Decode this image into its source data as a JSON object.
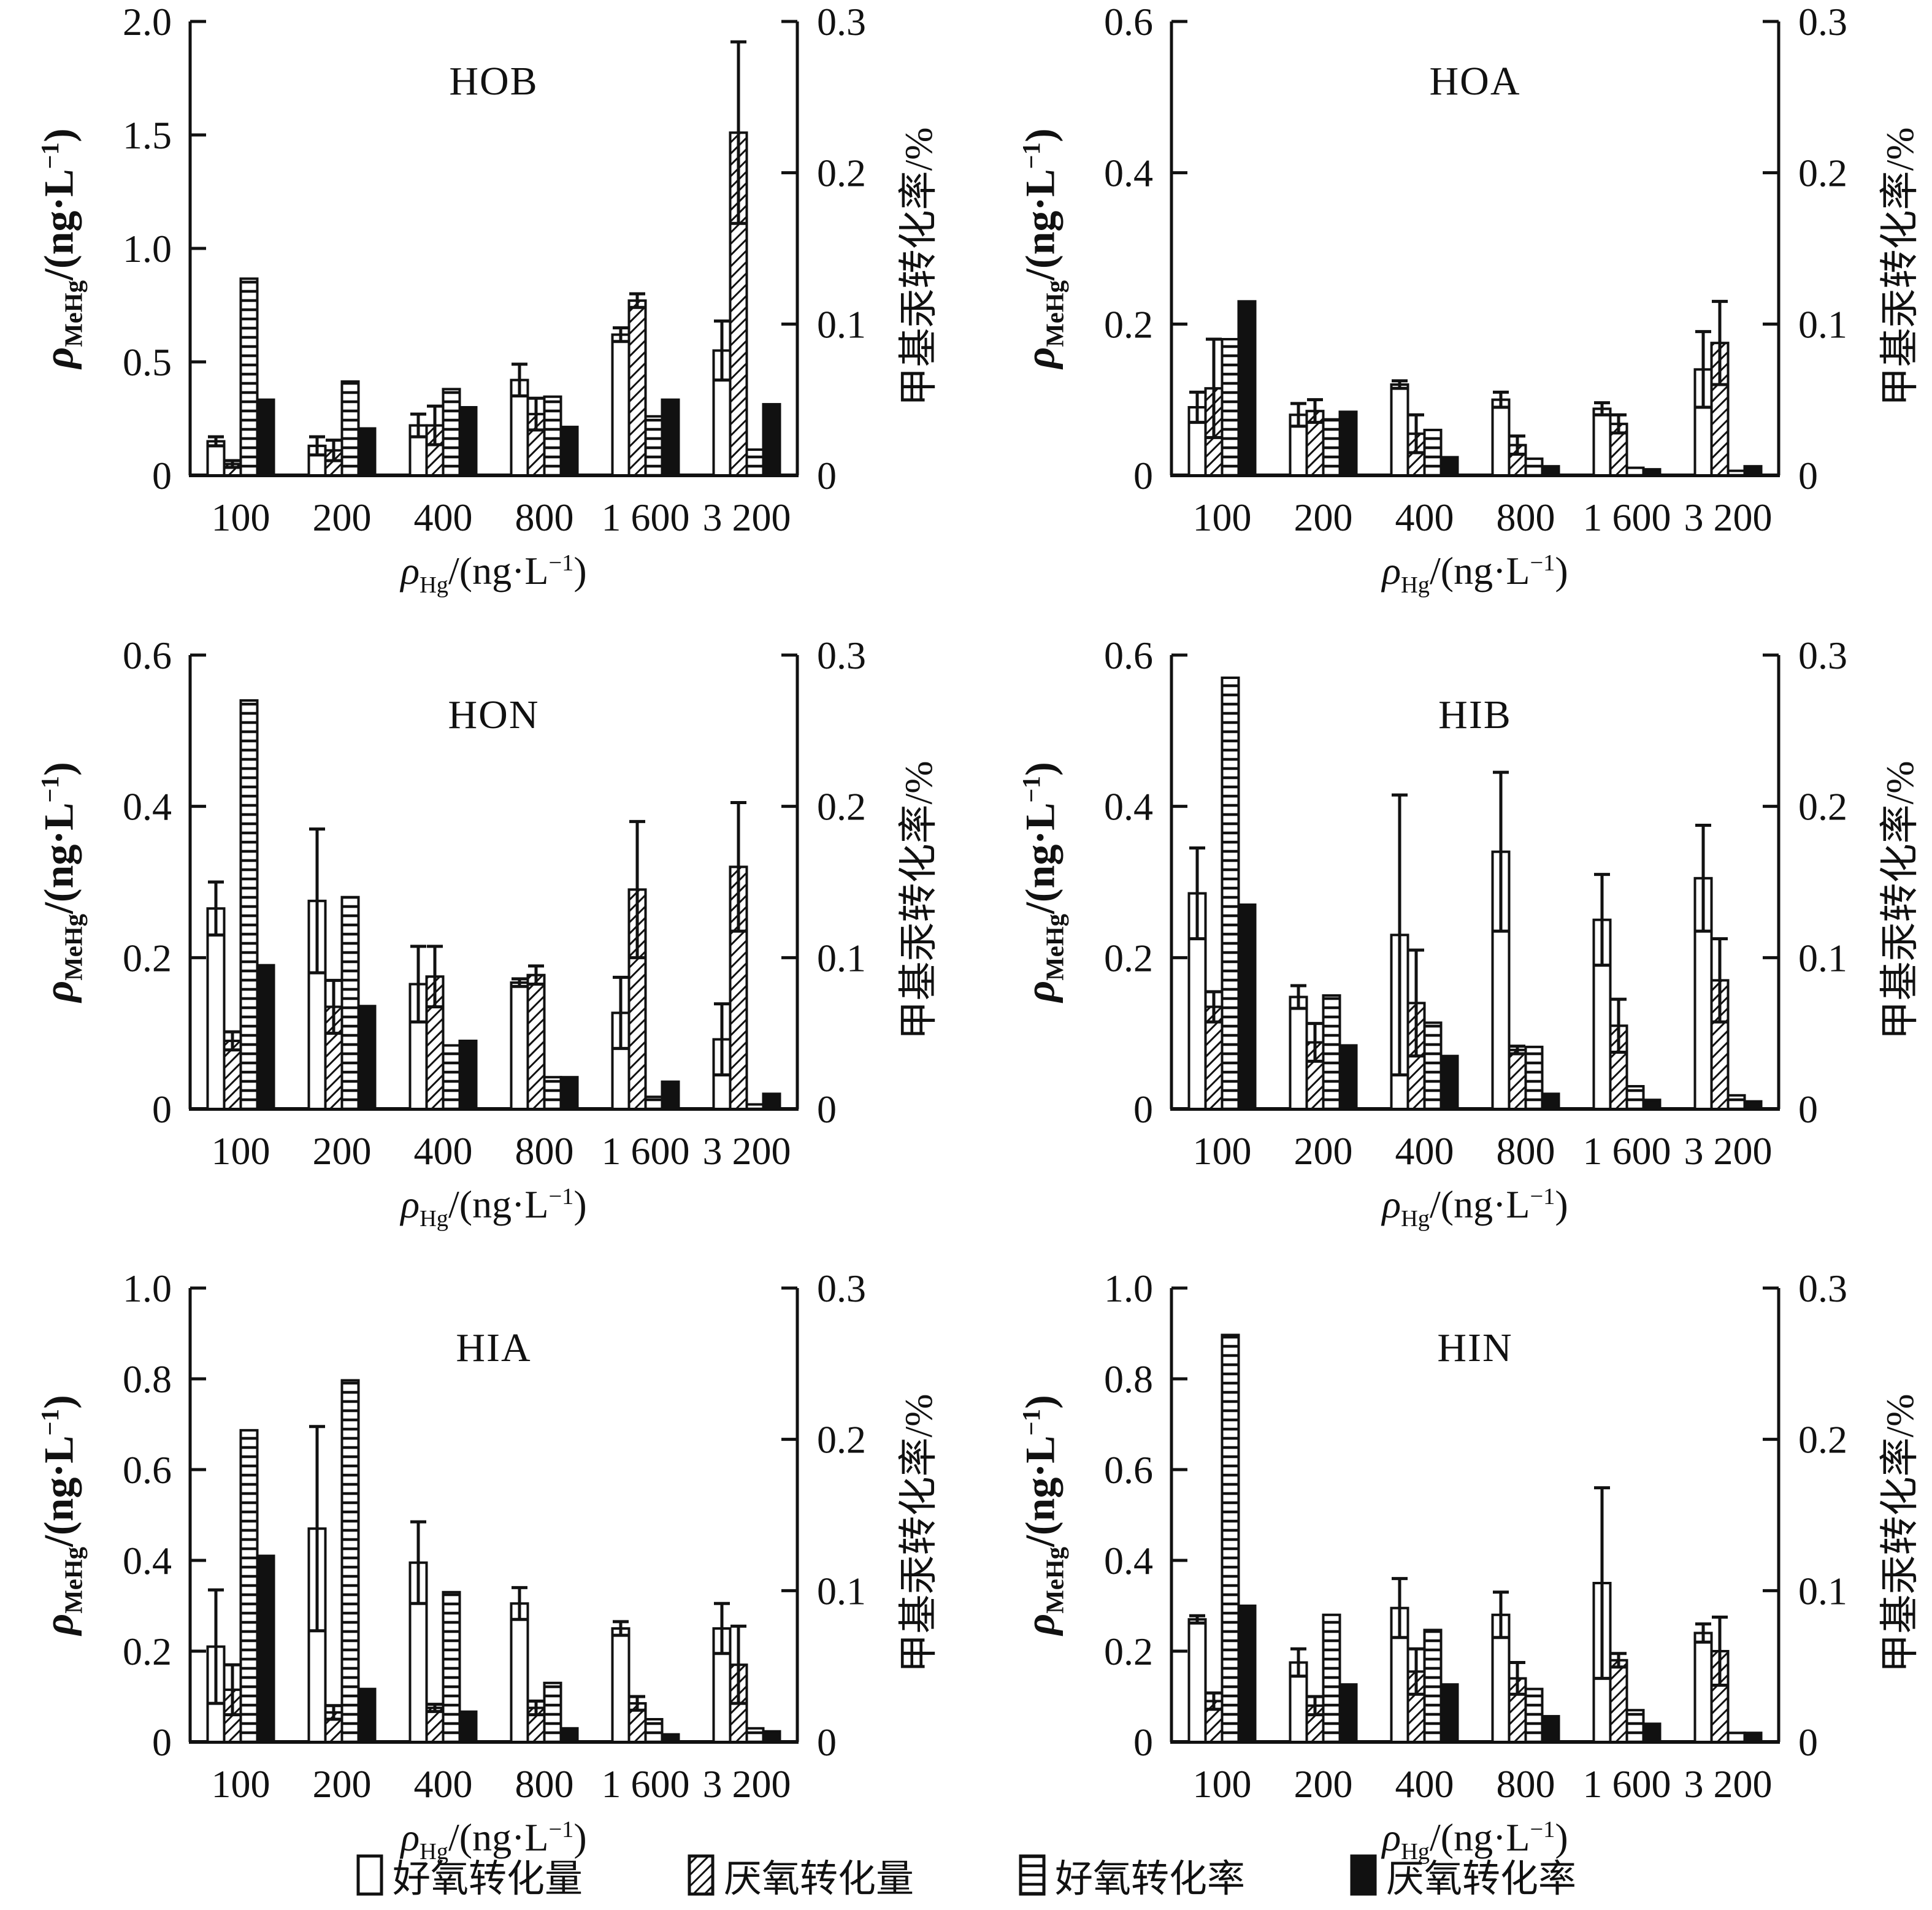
{
  "page": {
    "background": "#ffffff",
    "ink": "#111111"
  },
  "axis_labels": {
    "y_left": {
      "rho": "ρ",
      "sub": "MeHg",
      "mid": "/(ng·L",
      "sup": "−1",
      "end": ")"
    },
    "x": {
      "rho": "ρ",
      "sub": "Hg",
      "mid": "/(ng·L",
      "sup": "−1",
      "end": ")"
    },
    "y_right": "甲基汞转化率/%"
  },
  "legend": [
    {
      "label": "好氧转化量",
      "pattern": "open"
    },
    {
      "label": "厌氧转化量",
      "pattern": "diagonal"
    },
    {
      "label": "好氧转化率",
      "pattern": "horizontal"
    },
    {
      "label": "厌氧转化率",
      "pattern": "solid"
    }
  ],
  "chart_data": [
    {
      "type": "bar",
      "title": "HOB",
      "categories": [
        "100",
        "200",
        "400",
        "800",
        "1 600",
        "3 200"
      ],
      "left_axis": {
        "max": 2.0,
        "ticks": [
          0,
          0.5,
          1.0,
          1.5,
          2.0
        ],
        "labels": [
          "0",
          "0.5",
          "1.0",
          "1.5",
          "2.0"
        ]
      },
      "right_axis": {
        "max": 0.3,
        "ticks": [
          0,
          0.1,
          0.2,
          0.3
        ],
        "labels": [
          "0",
          "0.1",
          "0.2",
          "0.3"
        ]
      },
      "grid": false,
      "legend_position": "bottom",
      "series": [
        {
          "key": "aerobic-amount",
          "name": "好氧转化量",
          "pattern": "open",
          "axis": "left",
          "values": [
            0.15,
            0.13,
            0.22,
            0.42,
            0.62,
            0.55
          ],
          "errors": [
            0.02,
            0.04,
            0.05,
            0.07,
            0.03,
            0.13
          ]
        },
        {
          "key": "anaerobic-amount",
          "name": "厌氧转化量",
          "pattern": "diagonal",
          "axis": "left",
          "values": [
            0.05,
            0.11,
            0.22,
            0.27,
            0.77,
            1.51
          ],
          "errors": [
            0.015,
            0.045,
            0.085,
            0.07,
            0.03,
            0.4
          ]
        },
        {
          "key": "aerobic-rate",
          "name": "好氧转化率",
          "pattern": "horizontal",
          "axis": "right",
          "values": [
            0.13,
            0.062,
            0.057,
            0.052,
            0.039,
            0.017
          ]
        },
        {
          "key": "anaerobic-rate",
          "name": "厌氧转化率",
          "pattern": "solid",
          "axis": "right",
          "values": [
            0.05,
            0.031,
            0.045,
            0.032,
            0.05,
            0.047
          ]
        }
      ]
    },
    {
      "type": "bar",
      "title": "HOA",
      "categories": [
        "100",
        "200",
        "400",
        "800",
        "1 600",
        "3 200"
      ],
      "left_axis": {
        "max": 0.6,
        "ticks": [
          0,
          0.2,
          0.4,
          0.6
        ],
        "labels": [
          "0",
          "0.2",
          "0.4",
          "0.6"
        ]
      },
      "right_axis": {
        "max": 0.3,
        "ticks": [
          0,
          0.1,
          0.2,
          0.3
        ],
        "labels": [
          "0",
          "0.1",
          "0.2",
          "0.3"
        ]
      },
      "grid": false,
      "legend_position": "bottom",
      "series": [
        {
          "key": "aerobic-amount",
          "name": "好氧转化量",
          "pattern": "open",
          "axis": "left",
          "values": [
            0.09,
            0.08,
            0.12,
            0.1,
            0.088,
            0.14
          ],
          "errors": [
            0.02,
            0.015,
            0.005,
            0.01,
            0.008,
            0.05
          ]
        },
        {
          "key": "anaerobic-amount",
          "name": "厌氧转化量",
          "pattern": "diagonal",
          "axis": "left",
          "values": [
            0.115,
            0.085,
            0.055,
            0.04,
            0.068,
            0.175
          ],
          "errors": [
            0.065,
            0.015,
            0.025,
            0.012,
            0.012,
            0.055
          ]
        },
        {
          "key": "aerobic-rate",
          "name": "好氧转化率",
          "pattern": "horizontal",
          "axis": "right",
          "values": [
            0.09,
            0.037,
            0.03,
            0.011,
            0.005,
            0.003
          ]
        },
        {
          "key": "anaerobic-rate",
          "name": "厌氧转化率",
          "pattern": "solid",
          "axis": "right",
          "values": [
            0.115,
            0.042,
            0.012,
            0.006,
            0.004,
            0.006
          ]
        }
      ]
    },
    {
      "type": "bar",
      "title": "HON",
      "categories": [
        "100",
        "200",
        "400",
        "800",
        "1 600",
        "3 200"
      ],
      "left_axis": {
        "max": 0.6,
        "ticks": [
          0,
          0.2,
          0.4,
          0.6
        ],
        "labels": [
          "0",
          "0.2",
          "0.4",
          "0.6"
        ]
      },
      "right_axis": {
        "max": 0.3,
        "ticks": [
          0,
          0.1,
          0.2,
          0.3
        ],
        "labels": [
          "0",
          "0.1",
          "0.2",
          "0.3"
        ]
      },
      "grid": false,
      "legend_position": "bottom",
      "series": [
        {
          "key": "aerobic-amount",
          "name": "好氧转化量",
          "pattern": "open",
          "axis": "left",
          "values": [
            0.265,
            0.275,
            0.165,
            0.167,
            0.127,
            0.092
          ],
          "errors": [
            0.035,
            0.095,
            0.05,
            0.005,
            0.047,
            0.047
          ]
        },
        {
          "key": "anaerobic-amount",
          "name": "厌氧转化量",
          "pattern": "diagonal",
          "axis": "left",
          "values": [
            0.09,
            0.135,
            0.175,
            0.177,
            0.29,
            0.32
          ],
          "errors": [
            0.012,
            0.035,
            0.04,
            0.012,
            0.09,
            0.085
          ]
        },
        {
          "key": "aerobic-rate",
          "name": "好氧转化率",
          "pattern": "horizontal",
          "axis": "right",
          "values": [
            0.27,
            0.14,
            0.042,
            0.021,
            0.008,
            0.003
          ]
        },
        {
          "key": "anaerobic-rate",
          "name": "厌氧转化率",
          "pattern": "solid",
          "axis": "right",
          "values": [
            0.095,
            0.068,
            0.045,
            0.021,
            0.018,
            0.01
          ]
        }
      ]
    },
    {
      "type": "bar",
      "title": "HIB",
      "categories": [
        "100",
        "200",
        "400",
        "800",
        "1 600",
        "3 200"
      ],
      "left_axis": {
        "max": 0.6,
        "ticks": [
          0,
          0.2,
          0.4,
          0.6
        ],
        "labels": [
          "0",
          "0.2",
          "0.4",
          "0.6"
        ]
      },
      "right_axis": {
        "max": 0.3,
        "ticks": [
          0,
          0.1,
          0.2,
          0.3
        ],
        "labels": [
          "0",
          "0.1",
          "0.2",
          "0.3"
        ]
      },
      "grid": false,
      "legend_position": "bottom",
      "series": [
        {
          "key": "aerobic-amount",
          "name": "好氧转化量",
          "pattern": "open",
          "axis": "left",
          "values": [
            0.285,
            0.148,
            0.23,
            0.34,
            0.25,
            0.305
          ],
          "errors": [
            0.06,
            0.015,
            0.185,
            0.105,
            0.06,
            0.07
          ]
        },
        {
          "key": "anaerobic-amount",
          "name": "厌氧转化量",
          "pattern": "diagonal",
          "axis": "left",
          "values": [
            0.135,
            0.088,
            0.14,
            0.078,
            0.11,
            0.17
          ],
          "errors": [
            0.02,
            0.025,
            0.07,
            0.005,
            0.035,
            0.055
          ]
        },
        {
          "key": "aerobic-rate",
          "name": "好氧转化率",
          "pattern": "horizontal",
          "axis": "right",
          "values": [
            0.285,
            0.075,
            0.057,
            0.041,
            0.015,
            0.009
          ]
        },
        {
          "key": "anaerobic-rate",
          "name": "厌氧转化率",
          "pattern": "solid",
          "axis": "right",
          "values": [
            0.135,
            0.042,
            0.035,
            0.01,
            0.006,
            0.005
          ]
        }
      ]
    },
    {
      "type": "bar",
      "title": "HIA",
      "categories": [
        "100",
        "200",
        "400",
        "800",
        "1 600",
        "3 200"
      ],
      "left_axis": {
        "max": 1.0,
        "ticks": [
          0,
          0.2,
          0.4,
          0.6,
          0.8,
          1.0
        ],
        "labels": [
          "0",
          "0.2",
          "0.4",
          "0.6",
          "0.8",
          "1.0"
        ]
      },
      "right_axis": {
        "max": 0.3,
        "ticks": [
          0,
          0.1,
          0.2,
          0.3
        ],
        "labels": [
          "0",
          "0.1",
          "0.2",
          "0.3"
        ]
      },
      "grid": false,
      "legend_position": "bottom",
      "series": [
        {
          "key": "aerobic-amount",
          "name": "好氧转化量",
          "pattern": "open",
          "axis": "left",
          "values": [
            0.21,
            0.47,
            0.395,
            0.305,
            0.25,
            0.25
          ],
          "errors": [
            0.125,
            0.225,
            0.09,
            0.035,
            0.015,
            0.055
          ]
        },
        {
          "key": "anaerobic-amount",
          "name": "厌氧转化量",
          "pattern": "diagonal",
          "axis": "left",
          "values": [
            0.115,
            0.065,
            0.075,
            0.075,
            0.085,
            0.17
          ],
          "errors": [
            0.055,
            0.015,
            0.008,
            0.015,
            0.015,
            0.085
          ]
        },
        {
          "key": "aerobic-rate",
          "name": "好氧转化率",
          "pattern": "horizontal",
          "axis": "right",
          "values": [
            0.206,
            0.239,
            0.099,
            0.039,
            0.015,
            0.009
          ]
        },
        {
          "key": "anaerobic-rate",
          "name": "厌氧转化率",
          "pattern": "solid",
          "axis": "right",
          "values": [
            0.123,
            0.035,
            0.02,
            0.009,
            0.005,
            0.007
          ]
        }
      ]
    },
    {
      "type": "bar",
      "title": "HIN",
      "categories": [
        "100",
        "200",
        "400",
        "800",
        "1 600",
        "3 200"
      ],
      "left_axis": {
        "max": 1.0,
        "ticks": [
          0,
          0.2,
          0.4,
          0.6,
          0.8,
          1.0
        ],
        "labels": [
          "0",
          "0.2",
          "0.4",
          "0.6",
          "0.8",
          "1.0"
        ]
      },
      "right_axis": {
        "max": 0.3,
        "ticks": [
          0,
          0.1,
          0.2,
          0.3
        ],
        "labels": [
          "0",
          "0.1",
          "0.2",
          "0.3"
        ]
      },
      "grid": false,
      "legend_position": "bottom",
      "series": [
        {
          "key": "aerobic-amount",
          "name": "好氧转化量",
          "pattern": "open",
          "axis": "left",
          "values": [
            0.27,
            0.175,
            0.295,
            0.28,
            0.35,
            0.24
          ],
          "errors": [
            0.008,
            0.03,
            0.065,
            0.05,
            0.21,
            0.02
          ]
        },
        {
          "key": "anaerobic-amount",
          "name": "厌氧转化量",
          "pattern": "diagonal",
          "axis": "left",
          "values": [
            0.09,
            0.08,
            0.155,
            0.14,
            0.18,
            0.2
          ],
          "errors": [
            0.018,
            0.02,
            0.05,
            0.035,
            0.015,
            0.075
          ]
        },
        {
          "key": "aerobic-rate",
          "name": "好氧转化率",
          "pattern": "horizontal",
          "axis": "right",
          "values": [
            0.269,
            0.084,
            0.074,
            0.035,
            0.021,
            0.006
          ]
        },
        {
          "key": "anaerobic-rate",
          "name": "厌氧转化率",
          "pattern": "solid",
          "axis": "right",
          "values": [
            0.09,
            0.038,
            0.038,
            0.017,
            0.012,
            0.006
          ]
        }
      ]
    }
  ]
}
